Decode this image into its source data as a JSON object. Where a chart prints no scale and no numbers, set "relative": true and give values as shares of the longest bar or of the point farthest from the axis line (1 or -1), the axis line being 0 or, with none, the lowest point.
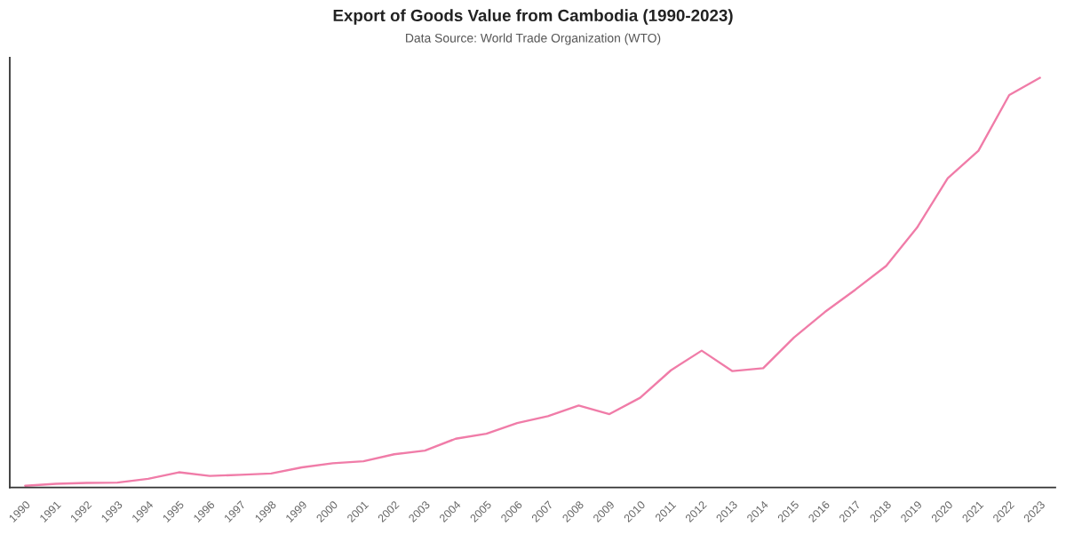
{
  "chart_data": {
    "type": "line",
    "title": "Export of Goods Value from Cambodia (1990-2023)",
    "subtitle": "Data Source: World Trade Organization (WTO)",
    "categories": [
      "1990",
      "1991",
      "1992",
      "1993",
      "1994",
      "1995",
      "1996",
      "1997",
      "1998",
      "1999",
      "2000",
      "2001",
      "2002",
      "2003",
      "2004",
      "2005",
      "2006",
      "2007",
      "2008",
      "2009",
      "2010",
      "2011",
      "2012",
      "2013",
      "2014",
      "2015",
      "2016",
      "2017",
      "2018",
      "2019",
      "2020",
      "2021",
      "2022",
      "2023"
    ],
    "relative": true,
    "series": [
      {
        "color": "#f07ca8",
        "values": [
          0.004,
          0.009,
          0.011,
          0.012,
          0.021,
          0.037,
          0.028,
          0.031,
          0.034,
          0.049,
          0.059,
          0.064,
          0.081,
          0.09,
          0.119,
          0.131,
          0.157,
          0.174,
          0.2,
          0.179,
          0.219,
          0.286,
          0.334,
          0.284,
          0.291,
          0.366,
          0.428,
          0.483,
          0.541,
          0.634,
          0.755,
          0.822,
          0.958,
          1.0
        ]
      }
    ]
  }
}
